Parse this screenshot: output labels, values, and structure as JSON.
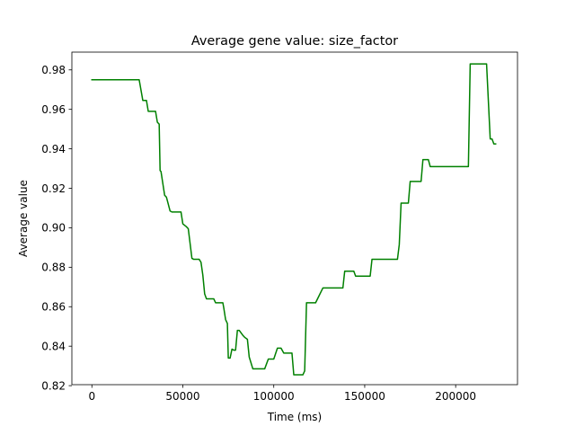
{
  "chart_data": {
    "type": "line",
    "title": "Average gene value: size_factor",
    "xlabel": "Time (ms)",
    "ylabel": "Average value",
    "xlim": [
      -11000,
      234000
    ],
    "ylim": [
      0.8205,
      0.989
    ],
    "grid": false,
    "legend": "none",
    "xticks": [
      0,
      50000,
      100000,
      150000,
      200000
    ],
    "xtick_labels": [
      "0",
      "50000",
      "100000",
      "150000",
      "200000"
    ],
    "yticks": [
      0.82,
      0.84,
      0.86,
      0.88,
      0.9,
      0.92,
      0.94,
      0.96,
      0.98
    ],
    "ytick_labels": [
      "0.82",
      "0.84",
      "0.86",
      "0.88",
      "0.90",
      "0.92",
      "0.94",
      "0.96",
      "0.98"
    ],
    "series": [
      {
        "color": "#008000",
        "x": [
          0,
          26000,
          28000,
          30000,
          31000,
          35000,
          36000,
          37000,
          37500,
          38000,
          40000,
          41000,
          43000,
          44000,
          49000,
          50000,
          52000,
          53000,
          55000,
          56000,
          59000,
          60000,
          61000,
          62000,
          63000,
          67000,
          68000,
          72000,
          72500,
          73500,
          74500,
          75000,
          76000,
          77000,
          78000,
          79000,
          80000,
          81000,
          83000,
          84000,
          85500,
          86500,
          88500,
          92000,
          95000,
          97000,
          100000,
          102000,
          104000,
          105500,
          107000,
          110000,
          111000,
          116000,
          117000,
          118000,
          119000,
          123000,
          127000,
          128000,
          138000,
          139000,
          144000,
          145000,
          153000,
          154000,
          168000,
          169000,
          170000,
          174000,
          175000,
          181000,
          182000,
          185000,
          186000,
          207000,
          208000,
          217000,
          219000,
          220000,
          221000,
          222000
        ],
        "y": [
          0.975,
          0.975,
          0.9645,
          0.9645,
          0.959,
          0.959,
          0.9535,
          0.9525,
          0.929,
          0.9285,
          0.9165,
          0.9155,
          0.9085,
          0.908,
          0.908,
          0.902,
          0.9005,
          0.8995,
          0.8845,
          0.884,
          0.884,
          0.8825,
          0.876,
          0.8665,
          0.864,
          0.864,
          0.862,
          0.862,
          0.8595,
          0.8535,
          0.8515,
          0.834,
          0.834,
          0.8385,
          0.838,
          0.838,
          0.848,
          0.848,
          0.8455,
          0.8445,
          0.8435,
          0.8345,
          0.8285,
          0.8285,
          0.8285,
          0.8335,
          0.8335,
          0.839,
          0.839,
          0.8365,
          0.8365,
          0.8365,
          0.8255,
          0.8255,
          0.8275,
          0.862,
          0.862,
          0.862,
          0.8695,
          0.8695,
          0.8695,
          0.878,
          0.878,
          0.8755,
          0.8755,
          0.884,
          0.884,
          0.8915,
          0.9125,
          0.9125,
          0.9235,
          0.9235,
          0.9345,
          0.9345,
          0.931,
          0.931,
          0.983,
          0.983,
          0.945,
          0.945,
          0.9425,
          0.9425
        ]
      }
    ]
  }
}
